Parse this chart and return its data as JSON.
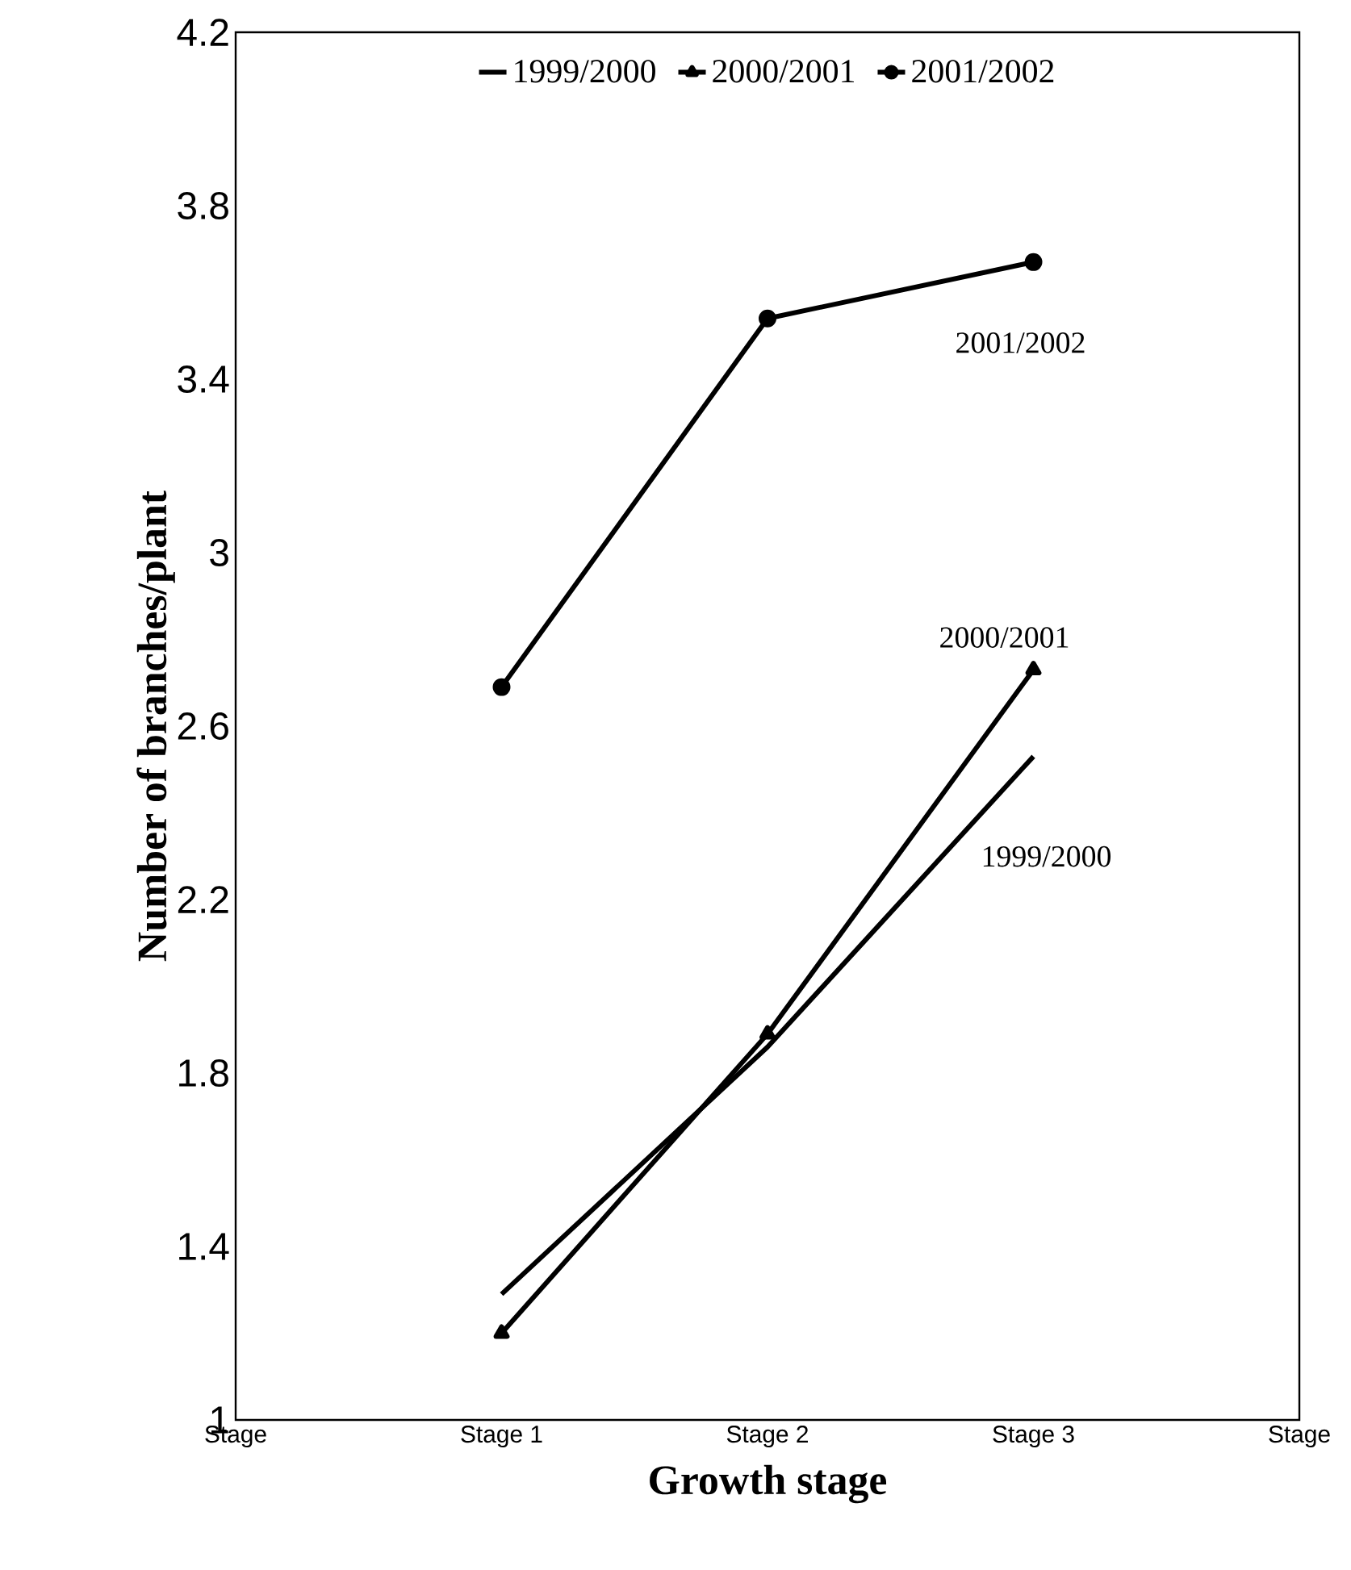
{
  "chart_data": {
    "type": "line",
    "xlabel": "Growth stage",
    "ylabel": "Number of branches/plant",
    "categories": [
      "Stage",
      "Stage 1",
      "Stage 2",
      "Stage 3",
      "Stage"
    ],
    "series": [
      {
        "name": "1999/2000",
        "color": "#000000",
        "marker": "none",
        "values": [
          null,
          1.29,
          1.86,
          2.53,
          null
        ]
      },
      {
        "name": "2000/2001",
        "color": "#000000",
        "marker": "triangle",
        "values": [
          null,
          1.2,
          1.89,
          2.73,
          null
        ]
      },
      {
        "name": "2001/2002",
        "color": "#000000",
        "marker": "circle",
        "values": [
          null,
          2.69,
          3.54,
          3.67,
          null
        ]
      }
    ],
    "ylim": [
      1,
      4.2
    ],
    "yticks": [
      1,
      1.4,
      1.8,
      2.2,
      2.6,
      3,
      3.4,
      3.8,
      4.2
    ],
    "grid": false,
    "legend": "top",
    "line_style": "solid",
    "annotations": [
      {
        "text": "2001/2002",
        "x": "Stage 3",
        "y": 3.67
      },
      {
        "text": "2000/2001",
        "x": "Stage 3",
        "y": 2.73
      },
      {
        "text": "1999/2000",
        "x": "Stage 3",
        "y": 2.53
      }
    ]
  }
}
